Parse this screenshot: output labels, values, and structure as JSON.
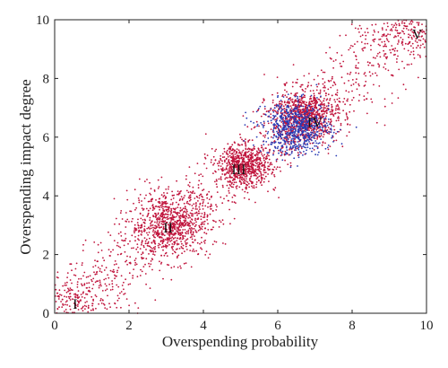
{
  "chart_data": {
    "type": "scatter",
    "title": "",
    "xlabel": "Overspending probability",
    "ylabel": "Overspending impact degree",
    "xlim": [
      0,
      10
    ],
    "ylim": [
      0,
      10
    ],
    "xticks": [
      0,
      2,
      4,
      6,
      8,
      10
    ],
    "yticks": [
      0,
      2,
      4,
      6,
      8,
      10
    ],
    "grid": false,
    "colors": {
      "red": "#c0143c",
      "blue": "#2a3cb4",
      "axis": "#222222"
    },
    "series": [
      {
        "color": "#c0143c",
        "clusters": [
          {
            "label": "I",
            "center": [
              0.6,
              0.4
            ],
            "spread": [
              0.7,
              0.5
            ],
            "count": 260
          },
          {
            "label": "II",
            "center": [
              3.1,
              3.0
            ],
            "spread": [
              0.55,
              0.55
            ],
            "count": 800
          },
          {
            "label": "III",
            "center": [
              5.1,
              5.0
            ],
            "spread": [
              0.35,
              0.35
            ],
            "count": 620
          },
          {
            "label": "IV",
            "center": [
              6.7,
              6.7
            ],
            "spread": [
              0.45,
              0.45
            ],
            "count": 900
          },
          {
            "label": "V",
            "center": [
              9.5,
              9.6
            ],
            "spread": [
              0.5,
              0.4
            ],
            "count": 200
          }
        ],
        "bridges": [
          {
            "from": [
              0.5,
              0.5
            ],
            "to": [
              3.0,
              3.0
            ],
            "count": 230,
            "jitter": 0.55
          },
          {
            "from": [
              3.2,
              3.1
            ],
            "to": [
              5.1,
              5.0
            ],
            "count": 200,
            "jitter": 0.5
          },
          {
            "from": [
              5.1,
              5.0
            ],
            "to": [
              6.7,
              6.6
            ],
            "count": 160,
            "jitter": 0.4
          },
          {
            "from": [
              6.8,
              6.8
            ],
            "to": [
              9.6,
              9.8
            ],
            "count": 320,
            "jitter": 0.6
          }
        ]
      },
      {
        "color": "#2a3cb4",
        "clusters": [
          {
            "label": "IV",
            "center": [
              6.5,
              6.3
            ],
            "spread": [
              0.45,
              0.45
            ],
            "count": 650
          }
        ],
        "bridges": []
      }
    ],
    "cluster_labels": [
      {
        "text": "I",
        "x": 0.55,
        "y": 0.3
      },
      {
        "text": "II",
        "x": 3.05,
        "y": 2.9
      },
      {
        "text": "III",
        "x": 4.95,
        "y": 4.9
      },
      {
        "text": "IV",
        "x": 7.0,
        "y": 6.5
      },
      {
        "text": "V",
        "x": 9.75,
        "y": 9.5
      }
    ]
  }
}
